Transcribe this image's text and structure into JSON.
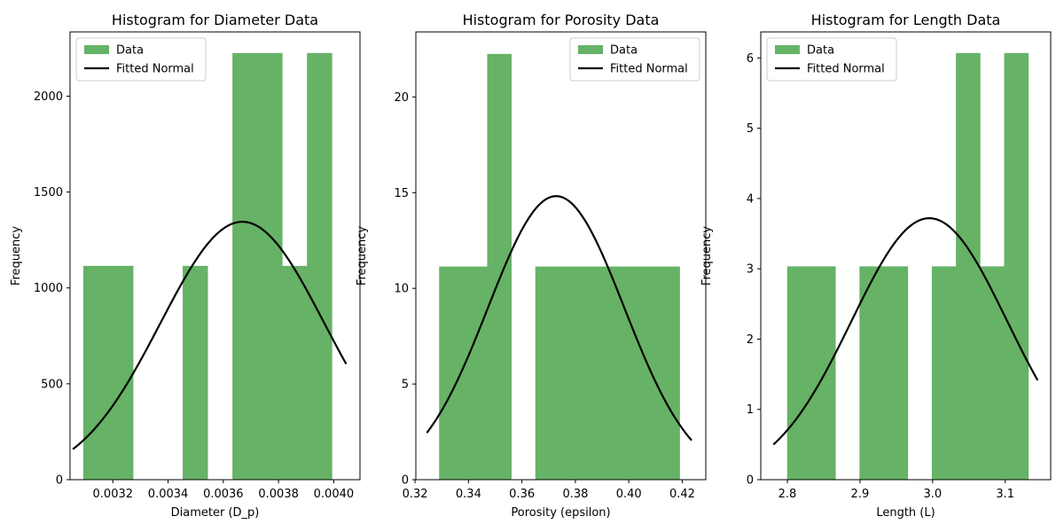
{
  "chart_data": [
    {
      "type": "bar",
      "title": "Histogram for Diameter Data",
      "xlabel": "Diameter (D_p)",
      "ylabel": "Frequency",
      "xlim": [
        0.003045,
        0.004095
      ],
      "ylim": [
        0,
        2335
      ],
      "xticks": [
        0.0032,
        0.0034,
        0.0036,
        0.0038,
        0.004
      ],
      "xtick_labels": [
        "0.0032",
        "0.0034",
        "0.0036",
        "0.0038",
        "0.0040"
      ],
      "yticks": [
        0,
        500,
        1000,
        1500,
        2000
      ],
      "ytick_labels": [
        "0",
        "500",
        "1000",
        "1500",
        "2000"
      ],
      "bins": [
        {
          "x0": 0.003093,
          "x1": 0.003183,
          "value": 1115
        },
        {
          "x0": 0.003183,
          "x1": 0.003273,
          "value": 1115
        },
        {
          "x0": 0.003273,
          "x1": 0.003363,
          "value": 0
        },
        {
          "x0": 0.003363,
          "x1": 0.003453,
          "value": 0
        },
        {
          "x0": 0.003453,
          "x1": 0.003543,
          "value": 1115
        },
        {
          "x0": 0.003543,
          "x1": 0.003633,
          "value": 0
        },
        {
          "x0": 0.003633,
          "x1": 0.003723,
          "value": 2225
        },
        {
          "x0": 0.003723,
          "x1": 0.003813,
          "value": 2225
        },
        {
          "x0": 0.003813,
          "x1": 0.003903,
          "value": 1115
        },
        {
          "x0": 0.003903,
          "x1": 0.003993,
          "value": 2225
        }
      ],
      "fit": {
        "mean": 0.003669,
        "sd": 0.000297,
        "peak": 1345,
        "x_range": [
          0.003055,
          0.004045
        ]
      },
      "series": [
        {
          "name": "Data",
          "color": "#66b266"
        },
        {
          "name": "Fitted Normal",
          "color": "#000000"
        }
      ],
      "legend": "top-left",
      "grid": false
    },
    {
      "type": "bar",
      "title": "Histogram for Porosity Data",
      "xlabel": "Porosity (epsilon)",
      "ylabel": "Frequency",
      "xlim": [
        0.3203,
        0.4288
      ],
      "ylim": [
        0,
        23.4
      ],
      "xticks": [
        0.32,
        0.34,
        0.36,
        0.38,
        0.4,
        0.42
      ],
      "xtick_labels": [
        "0.32",
        "0.34",
        "0.36",
        "0.38",
        "0.40",
        "0.42"
      ],
      "yticks": [
        0,
        5,
        10,
        15,
        20
      ],
      "ytick_labels": [
        "0",
        "5",
        "10",
        "15",
        "20"
      ],
      "bins": [
        {
          "x0": 0.329,
          "x1": 0.338,
          "value": 11.14
        },
        {
          "x0": 0.338,
          "x1": 0.347,
          "value": 11.14
        },
        {
          "x0": 0.347,
          "x1": 0.356,
          "value": 22.25
        },
        {
          "x0": 0.356,
          "x1": 0.365,
          "value": 0
        },
        {
          "x0": 0.365,
          "x1": 0.374,
          "value": 11.14
        },
        {
          "x0": 0.374,
          "x1": 0.383,
          "value": 11.14
        },
        {
          "x0": 0.383,
          "x1": 0.392,
          "value": 11.14
        },
        {
          "x0": 0.392,
          "x1": 0.401,
          "value": 11.14
        },
        {
          "x0": 0.401,
          "x1": 0.41,
          "value": 11.14
        },
        {
          "x0": 0.41,
          "x1": 0.419,
          "value": 11.14
        }
      ],
      "fit": {
        "mean": 0.3728,
        "sd": 0.0255,
        "peak": 14.82,
        "x_range": [
          0.3244,
          0.4235
        ]
      },
      "series": [
        {
          "name": "Data",
          "color": "#66b266"
        },
        {
          "name": "Fitted Normal",
          "color": "#000000"
        }
      ],
      "legend": "top-right",
      "grid": false
    },
    {
      "type": "bar",
      "title": "Histogram for Length Data",
      "xlabel": "Length (L)",
      "ylabel": "Frequency",
      "xlim": [
        2.7634,
        3.1626
      ],
      "ylim": [
        0,
        6.37
      ],
      "xticks": [
        2.8,
        2.9,
        3.0,
        3.1
      ],
      "xtick_labels": [
        "2.8",
        "2.9",
        "3.0",
        "3.1"
      ],
      "yticks": [
        0,
        1,
        2,
        3,
        4,
        5,
        6
      ],
      "ytick_labels": [
        "0",
        "1",
        "2",
        "3",
        "4",
        "5",
        "6"
      ],
      "bins": [
        {
          "x0": 2.7997,
          "x1": 2.8329,
          "value": 3.035
        },
        {
          "x0": 2.8329,
          "x1": 2.8661,
          "value": 3.035
        },
        {
          "x0": 2.8661,
          "x1": 2.8993,
          "value": 0
        },
        {
          "x0": 2.8993,
          "x1": 2.9325,
          "value": 3.035
        },
        {
          "x0": 2.9325,
          "x1": 2.9657,
          "value": 3.035
        },
        {
          "x0": 2.9657,
          "x1": 2.9989,
          "value": 0
        },
        {
          "x0": 2.9989,
          "x1": 3.0321,
          "value": 3.035
        },
        {
          "x0": 3.0321,
          "x1": 3.0653,
          "value": 6.07
        },
        {
          "x0": 3.0653,
          "x1": 3.0985,
          "value": 3.035
        },
        {
          "x0": 3.0985,
          "x1": 3.1317,
          "value": 6.07
        }
      ],
      "fit": {
        "mean": 2.9955,
        "sd": 0.1072,
        "peak": 3.72,
        "x_range": [
          2.7808,
          3.1446
        ]
      },
      "series": [
        {
          "name": "Data",
          "color": "#66b266"
        },
        {
          "name": "Fitted Normal",
          "color": "#000000"
        }
      ],
      "legend": "top-left",
      "grid": false
    }
  ]
}
